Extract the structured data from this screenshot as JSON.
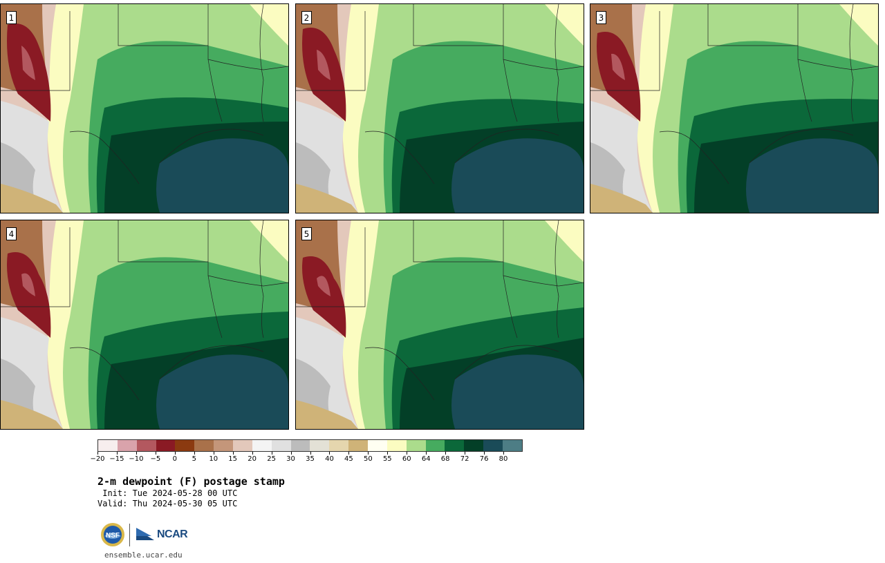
{
  "title": "2-m dewpoint (F) postage stamp",
  "init": " Init: Tue 2024-05-28 00 UTC",
  "valid": "Valid: Thu 2024-05-30 05 UTC",
  "website": "ensemble.ucar.edu",
  "logos": {
    "left": "nsf-logo",
    "right": "ncar-logo",
    "ncar_label": "NCAR",
    "nsf_label": "NSF"
  },
  "panels": [
    {
      "label": "1"
    },
    {
      "label": "2"
    },
    {
      "label": "3"
    },
    {
      "label": "4"
    },
    {
      "label": "5"
    }
  ],
  "colorbar": {
    "colors": [
      "#f7eeee",
      "#d9a3ab",
      "#b3585f",
      "#8a1a24",
      "#8b3a10",
      "#a9714a",
      "#c4967a",
      "#e3c8bb",
      "#f4f4f4",
      "#e0e0e0",
      "#bcbcbc",
      "#e3e1d6",
      "#e5d6ae",
      "#cfb378",
      "#fffff2",
      "#fbfcc1",
      "#abdc8c",
      "#46ab5f",
      "#0b683a",
      "#033f27",
      "#1a4b58",
      "#4d7d85"
    ],
    "tick_labels": [
      "−20",
      "−15",
      "−10",
      "−5",
      "0",
      "5",
      "10",
      "15",
      "20",
      "25",
      "30",
      "35",
      "40",
      "45",
      "50",
      "55",
      "60",
      "64",
      "68",
      "72",
      "76",
      "80"
    ]
  }
}
